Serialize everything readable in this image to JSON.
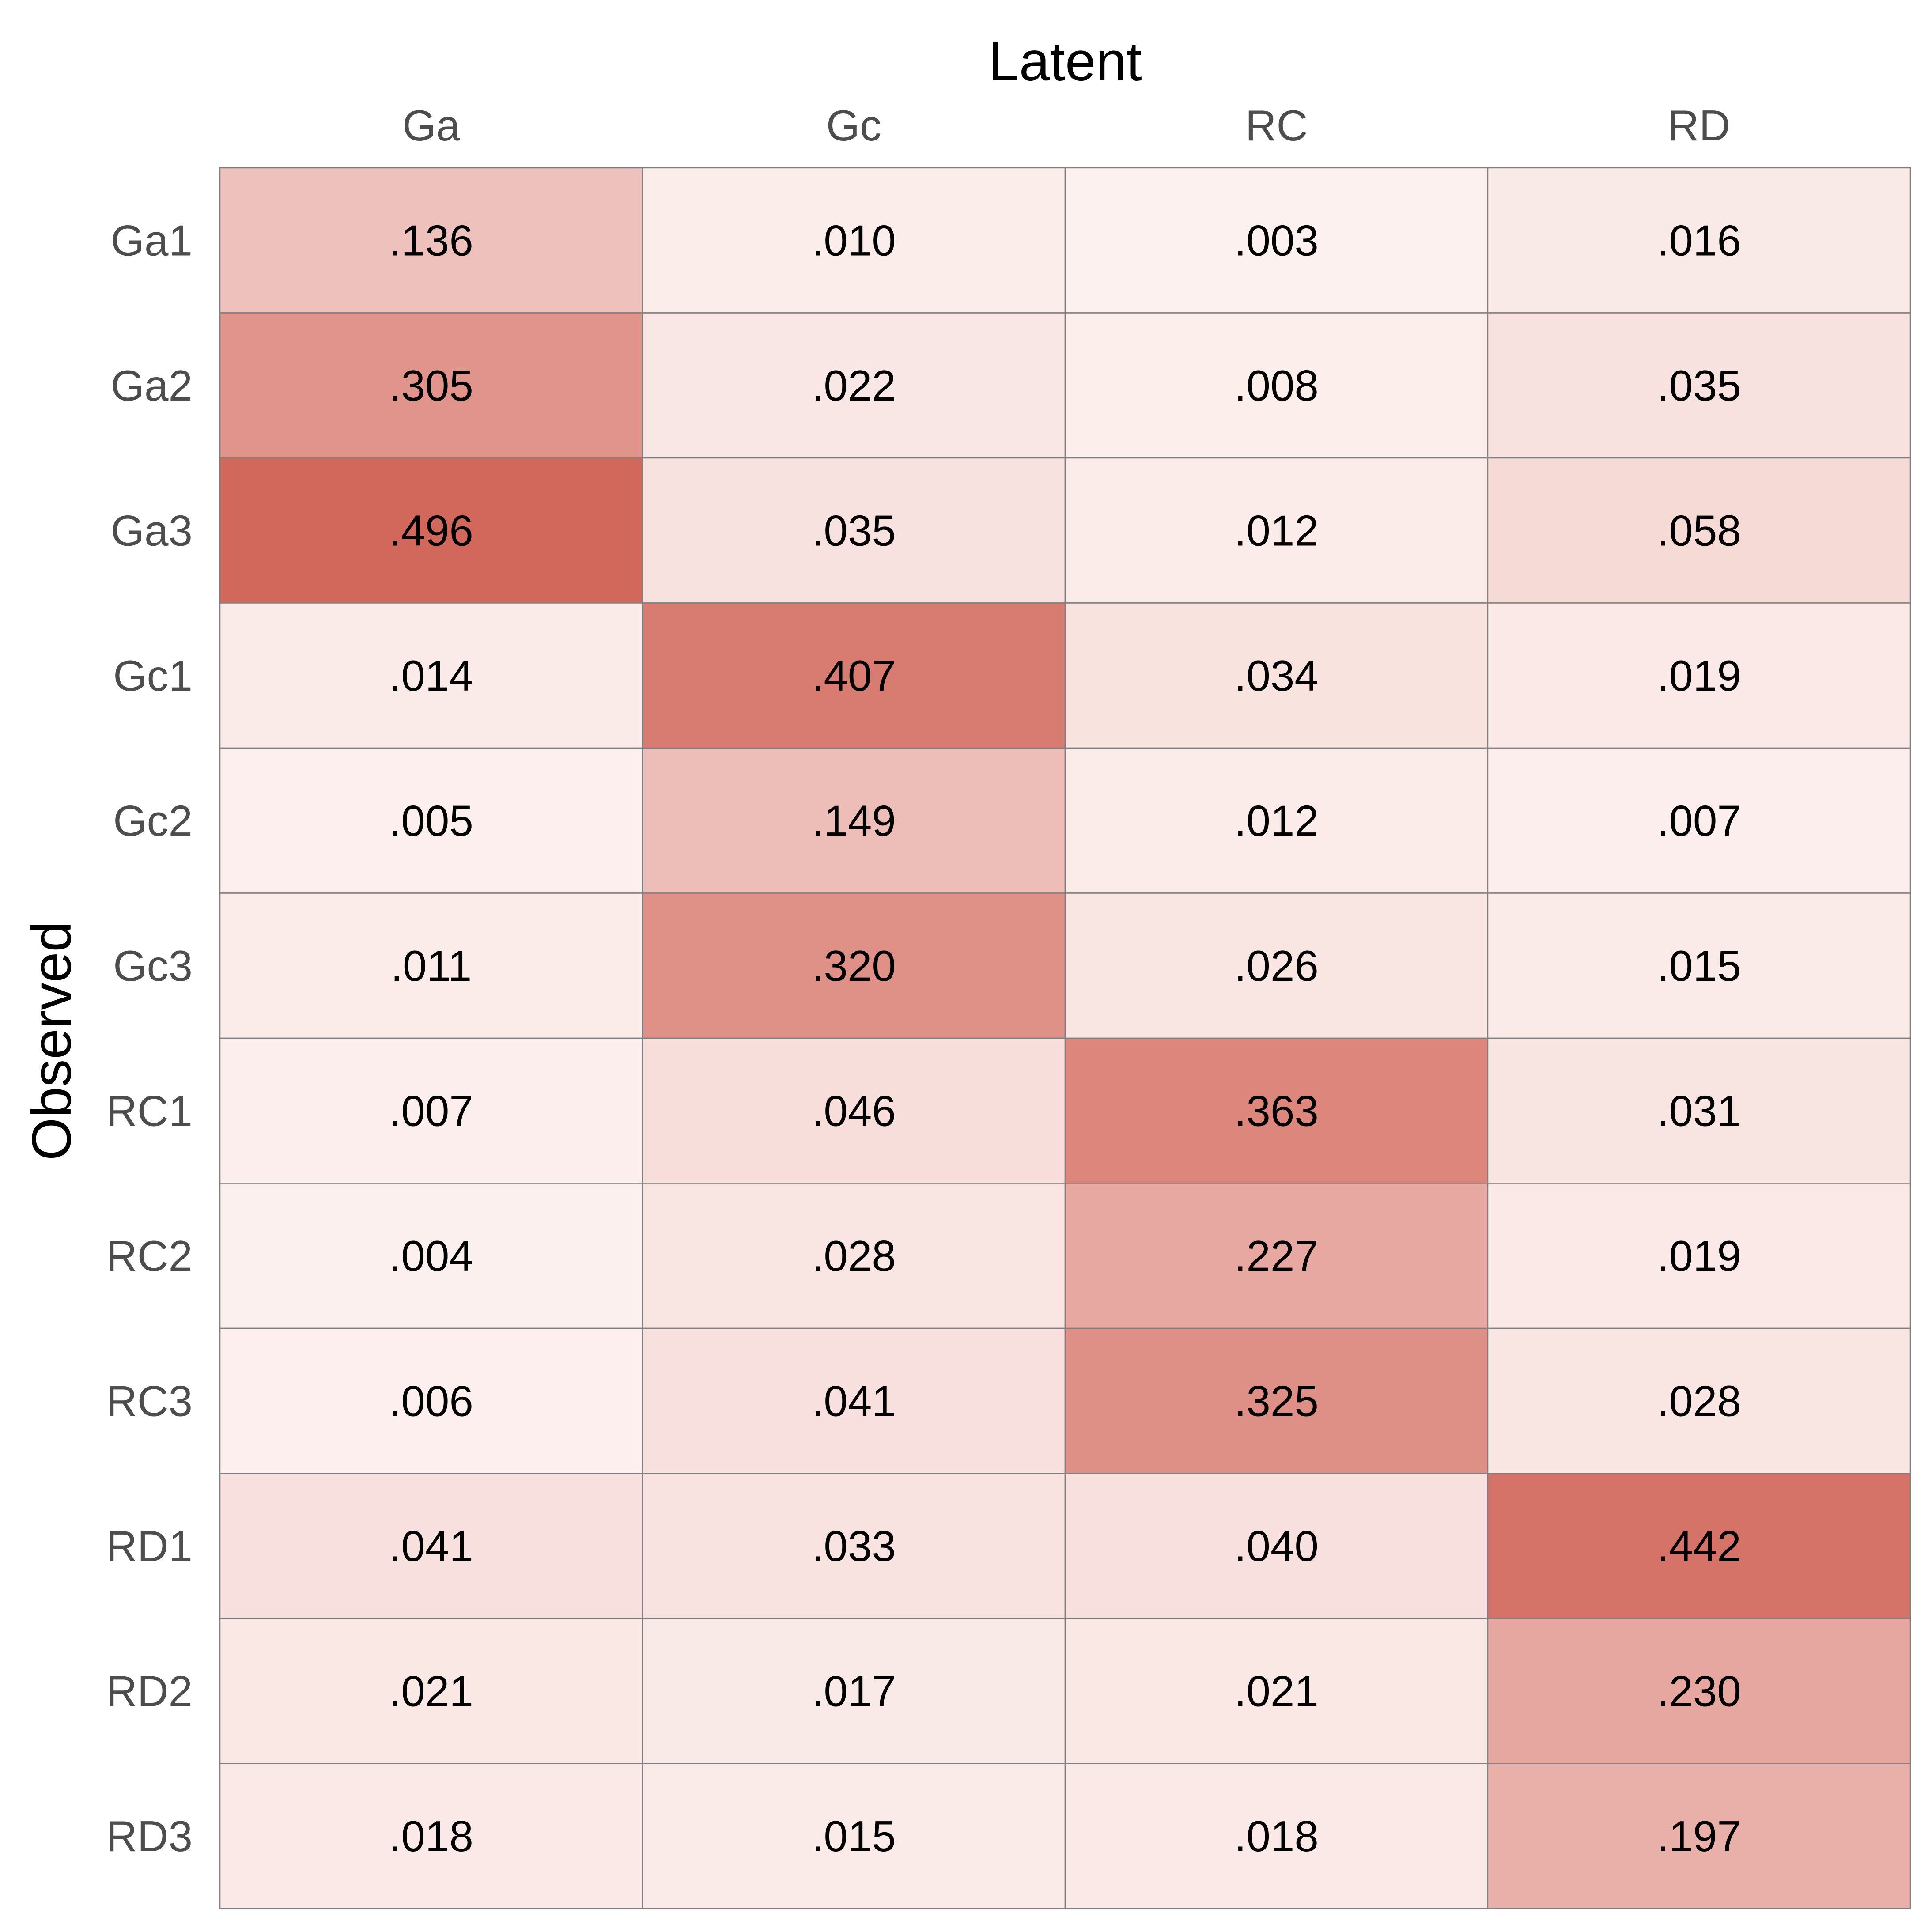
{
  "chart_data": {
    "type": "heatmap",
    "title": "",
    "xlabel": "Latent",
    "ylabel": "Observed",
    "columns": [
      "Ga",
      "Gc",
      "RC",
      "RD"
    ],
    "rows": [
      "Ga1",
      "Ga2",
      "Ga3",
      "Gc1",
      "Gc2",
      "Gc3",
      "RC1",
      "RC2",
      "RC3",
      "RD1",
      "RD2",
      "RD3"
    ],
    "values": [
      [
        0.136,
        0.01,
        0.003,
        0.016
      ],
      [
        0.305,
        0.022,
        0.008,
        0.035
      ],
      [
        0.496,
        0.035,
        0.012,
        0.058
      ],
      [
        0.014,
        0.407,
        0.034,
        0.019
      ],
      [
        0.005,
        0.149,
        0.012,
        0.007
      ],
      [
        0.011,
        0.32,
        0.026,
        0.015
      ],
      [
        0.007,
        0.046,
        0.363,
        0.031
      ],
      [
        0.004,
        0.028,
        0.227,
        0.019
      ],
      [
        0.006,
        0.041,
        0.325,
        0.028
      ],
      [
        0.041,
        0.033,
        0.04,
        0.442
      ],
      [
        0.021,
        0.017,
        0.021,
        0.23
      ],
      [
        0.018,
        0.015,
        0.018,
        0.197
      ]
    ],
    "labels": [
      [
        ".136",
        ".010",
        ".003",
        ".016"
      ],
      [
        ".305",
        ".022",
        ".008",
        ".035"
      ],
      [
        ".496",
        ".035",
        ".012",
        ".058"
      ],
      [
        ".014",
        ".407",
        ".034",
        ".019"
      ],
      [
        ".005",
        ".149",
        ".012",
        ".007"
      ],
      [
        ".011",
        ".320",
        ".026",
        ".015"
      ],
      [
        ".007",
        ".046",
        ".363",
        ".031"
      ],
      [
        ".004",
        ".028",
        ".227",
        ".019"
      ],
      [
        ".006",
        ".041",
        ".325",
        ".028"
      ],
      [
        ".041",
        ".033",
        ".040",
        ".442"
      ],
      [
        ".021",
        ".017",
        ".021",
        ".230"
      ],
      [
        ".018",
        ".015",
        ".018",
        ".197"
      ]
    ],
    "color_low": "#fdf3f1",
    "color_high": "#d2675b",
    "grid": true,
    "legend": "none"
  }
}
